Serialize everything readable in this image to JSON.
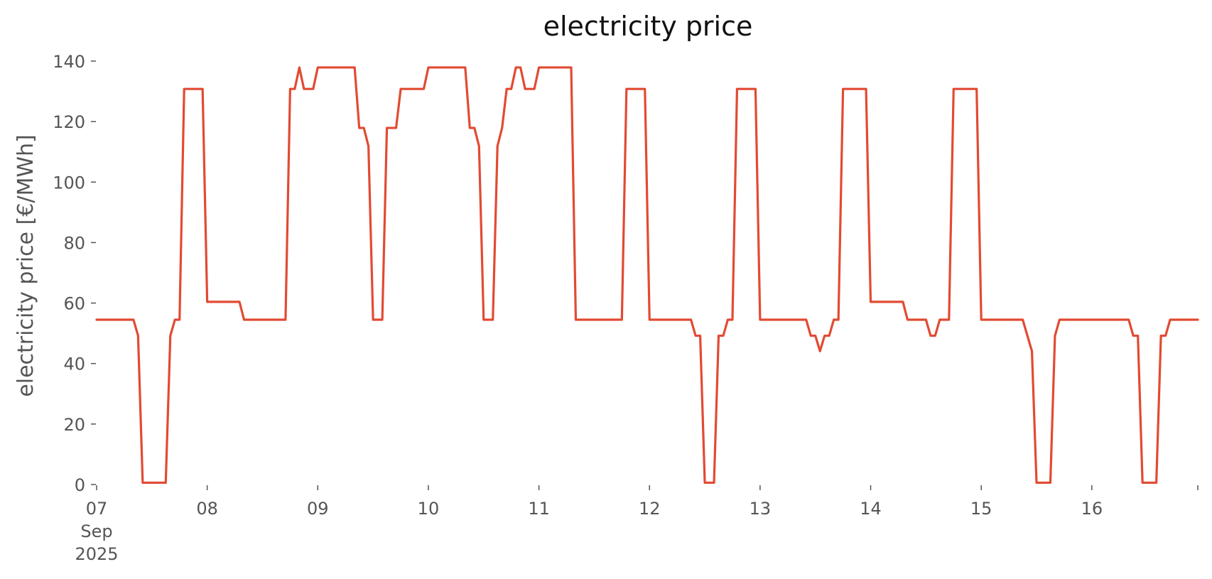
{
  "colors": {
    "series": "#e24a33",
    "text": "#555555",
    "title": "#111111"
  },
  "chart_data": {
    "type": "line",
    "title": "electricity price",
    "xlabel": "",
    "ylabel": "electricity price [€/MWh]",
    "xlim": [
      "2025-09-07 00:00",
      "2025-09-16 23:00"
    ],
    "ylim": [
      0,
      140
    ],
    "grid": false,
    "legend": "none",
    "yticks": [
      0,
      20,
      40,
      60,
      80,
      100,
      120,
      140
    ],
    "xticks": [
      {
        "x": "2025-09-07 00:00",
        "label": [
          "07",
          "Sep",
          "2025"
        ]
      },
      {
        "x": "2025-09-08 00:00",
        "label": [
          "08"
        ]
      },
      {
        "x": "2025-09-09 00:00",
        "label": [
          "09"
        ]
      },
      {
        "x": "2025-09-10 00:00",
        "label": [
          "10"
        ]
      },
      {
        "x": "2025-09-11 00:00",
        "label": [
          "11"
        ]
      },
      {
        "x": "2025-09-12 00:00",
        "label": [
          "12"
        ]
      },
      {
        "x": "2025-09-13 00:00",
        "label": [
          "13"
        ]
      },
      {
        "x": "2025-09-14 00:00",
        "label": [
          "14"
        ]
      },
      {
        "x": "2025-09-15 00:00",
        "label": [
          "15"
        ]
      },
      {
        "x": "2025-09-16 00:00",
        "label": [
          "16"
        ]
      },
      {
        "x": "2025-09-16 23:00",
        "label": []
      }
    ],
    "series": [
      {
        "name": "",
        "points": [
          [
            "2025-09-07 00:00",
            54.5
          ],
          [
            "2025-09-07 08:00",
            54.5
          ],
          [
            "2025-09-07 09:00",
            49.2
          ],
          [
            "2025-09-07 10:00",
            0.6
          ],
          [
            "2025-09-07 15:00",
            0.6
          ],
          [
            "2025-09-07 16:00",
            49.2
          ],
          [
            "2025-09-07 17:00",
            54.5
          ],
          [
            "2025-09-07 18:00",
            54.5
          ],
          [
            "2025-09-07 19:00",
            130.8
          ],
          [
            "2025-09-07 23:00",
            130.8
          ],
          [
            "2025-09-08 00:00",
            60.4
          ],
          [
            "2025-09-08 07:00",
            60.4
          ],
          [
            "2025-09-08 08:00",
            54.5
          ],
          [
            "2025-09-08 17:00",
            54.5
          ],
          [
            "2025-09-08 18:00",
            130.8
          ],
          [
            "2025-09-08 19:00",
            130.8
          ],
          [
            "2025-09-08 20:00",
            137.9
          ],
          [
            "2025-09-08 21:00",
            130.8
          ],
          [
            "2025-09-08 23:00",
            130.8
          ],
          [
            "2025-09-09 00:00",
            137.9
          ],
          [
            "2025-09-09 08:00",
            137.9
          ],
          [
            "2025-09-09 09:00",
            117.9
          ],
          [
            "2025-09-09 10:00",
            117.9
          ],
          [
            "2025-09-09 11:00",
            111.9
          ],
          [
            "2025-09-09 12:00",
            54.5
          ],
          [
            "2025-09-09 14:00",
            54.5
          ],
          [
            "2025-09-09 15:00",
            117.9
          ],
          [
            "2025-09-09 17:00",
            117.9
          ],
          [
            "2025-09-09 18:00",
            130.8
          ],
          [
            "2025-09-09 23:00",
            130.8
          ],
          [
            "2025-09-10 00:00",
            137.9
          ],
          [
            "2025-09-10 08:00",
            137.9
          ],
          [
            "2025-09-10 09:00",
            117.9
          ],
          [
            "2025-09-10 10:00",
            117.9
          ],
          [
            "2025-09-10 11:00",
            111.9
          ],
          [
            "2025-09-10 12:00",
            54.5
          ],
          [
            "2025-09-10 14:00",
            54.5
          ],
          [
            "2025-09-10 15:00",
            111.9
          ],
          [
            "2025-09-10 16:00",
            117.9
          ],
          [
            "2025-09-10 17:00",
            130.8
          ],
          [
            "2025-09-10 18:00",
            130.8
          ],
          [
            "2025-09-10 19:00",
            137.9
          ],
          [
            "2025-09-10 20:00",
            137.9
          ],
          [
            "2025-09-10 21:00",
            130.8
          ],
          [
            "2025-09-10 23:00",
            130.8
          ],
          [
            "2025-09-11 00:00",
            137.9
          ],
          [
            "2025-09-11 07:00",
            137.9
          ],
          [
            "2025-09-11 08:00",
            54.5
          ],
          [
            "2025-09-11 18:00",
            54.5
          ],
          [
            "2025-09-11 19:00",
            130.8
          ],
          [
            "2025-09-11 23:00",
            130.8
          ],
          [
            "2025-09-12 00:00",
            54.5
          ],
          [
            "2025-09-12 09:00",
            54.5
          ],
          [
            "2025-09-12 10:00",
            49.2
          ],
          [
            "2025-09-12 11:00",
            49.2
          ],
          [
            "2025-09-12 12:00",
            0.6
          ],
          [
            "2025-09-12 14:00",
            0.6
          ],
          [
            "2025-09-12 15:00",
            49.2
          ],
          [
            "2025-09-12 16:00",
            49.2
          ],
          [
            "2025-09-12 17:00",
            54.5
          ],
          [
            "2025-09-12 18:00",
            54.5
          ],
          [
            "2025-09-12 19:00",
            130.8
          ],
          [
            "2025-09-12 23:00",
            130.8
          ],
          [
            "2025-09-13 00:00",
            54.5
          ],
          [
            "2025-09-13 10:00",
            54.5
          ],
          [
            "2025-09-13 11:00",
            49.2
          ],
          [
            "2025-09-13 12:00",
            49.2
          ],
          [
            "2025-09-13 13:00",
            44.1
          ],
          [
            "2025-09-13 14:00",
            49.2
          ],
          [
            "2025-09-13 15:00",
            49.2
          ],
          [
            "2025-09-13 16:00",
            54.5
          ],
          [
            "2025-09-13 17:00",
            54.5
          ],
          [
            "2025-09-13 18:00",
            130.8
          ],
          [
            "2025-09-13 23:00",
            130.8
          ],
          [
            "2025-09-14 00:00",
            60.4
          ],
          [
            "2025-09-14 07:00",
            60.4
          ],
          [
            "2025-09-14 08:00",
            54.5
          ],
          [
            "2025-09-14 12:00",
            54.5
          ],
          [
            "2025-09-14 13:00",
            49.2
          ],
          [
            "2025-09-14 14:00",
            49.2
          ],
          [
            "2025-09-14 15:00",
            54.5
          ],
          [
            "2025-09-14 17:00",
            54.5
          ],
          [
            "2025-09-14 18:00",
            130.8
          ],
          [
            "2025-09-14 23:00",
            130.8
          ],
          [
            "2025-09-15 00:00",
            54.5
          ],
          [
            "2025-09-15 09:00",
            54.5
          ],
          [
            "2025-09-15 11:00",
            44.1
          ],
          [
            "2025-09-15 12:00",
            0.6
          ],
          [
            "2025-09-15 15:00",
            0.6
          ],
          [
            "2025-09-15 16:00",
            49.2
          ],
          [
            "2025-09-15 17:00",
            54.5
          ],
          [
            "2025-09-16 08:00",
            54.5
          ],
          [
            "2025-09-16 09:00",
            49.2
          ],
          [
            "2025-09-16 10:00",
            49.2
          ],
          [
            "2025-09-16 11:00",
            0.6
          ],
          [
            "2025-09-16 14:00",
            0.6
          ],
          [
            "2025-09-16 15:00",
            49.2
          ],
          [
            "2025-09-16 16:00",
            49.2
          ],
          [
            "2025-09-16 17:00",
            54.5
          ],
          [
            "2025-09-16 23:00",
            54.5
          ]
        ]
      }
    ]
  }
}
